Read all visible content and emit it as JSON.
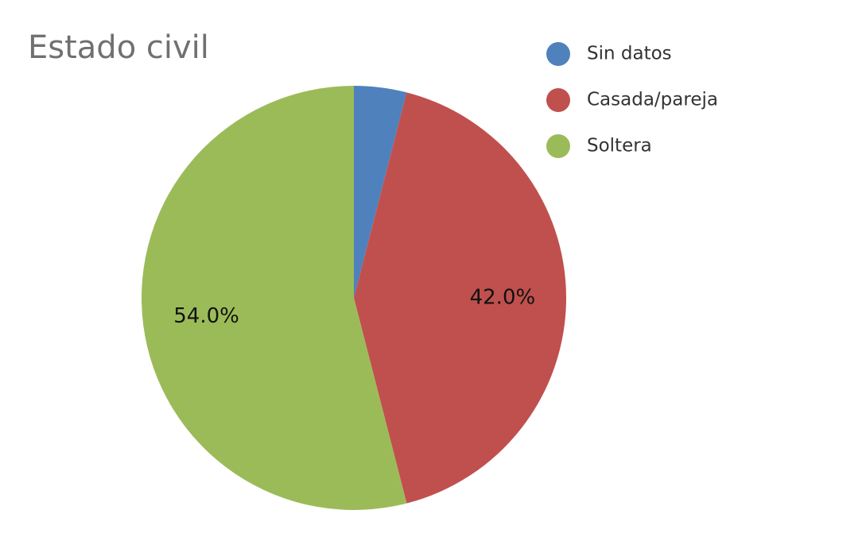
{
  "chart_data": {
    "type": "pie",
    "title": "Estado civil",
    "categories": [
      "Sin datos",
      "Casada/pareja",
      "Soltera"
    ],
    "values": [
      4,
      42,
      54
    ],
    "value_labels": [
      null,
      "42.0%",
      "54.0%"
    ],
    "colors": [
      "#4f81bd",
      "#c0504d",
      "#9bbb59"
    ],
    "legend": "top-right"
  }
}
